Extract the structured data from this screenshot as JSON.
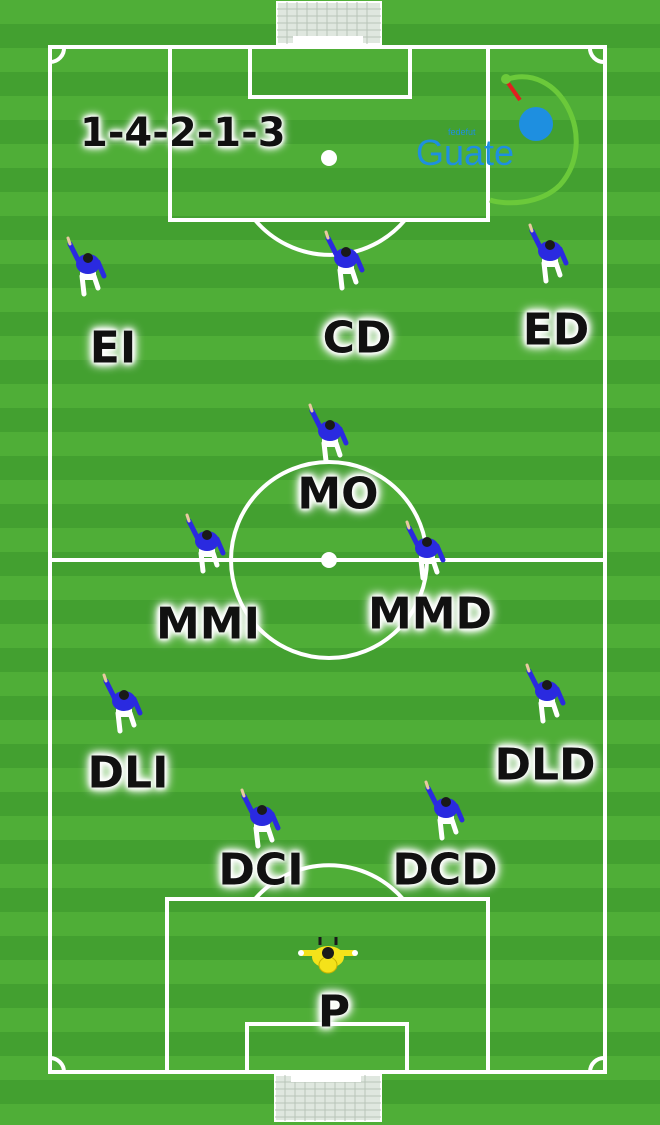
{
  "formation": "1-4-2-1-3",
  "logo": {
    "top_text": "fedefut",
    "main_text": "Guate"
  },
  "colors": {
    "grass_light": "#4fae37",
    "grass_dark": "#3f9a2c",
    "lines": "#ffffff",
    "outfield_kit": "#2a2ae0",
    "keeper_kit": "#f4e21a",
    "logo_blue": "#1e8fe0",
    "logo_green": "#6bc93a"
  },
  "players": [
    {
      "id": "ei",
      "label": "EI",
      "role": "outfield"
    },
    {
      "id": "cd",
      "label": "CD",
      "role": "outfield"
    },
    {
      "id": "ed",
      "label": "ED",
      "role": "outfield"
    },
    {
      "id": "mo",
      "label": "MO",
      "role": "outfield"
    },
    {
      "id": "mmi",
      "label": "MMI",
      "role": "outfield"
    },
    {
      "id": "mmd",
      "label": "MMD",
      "role": "outfield"
    },
    {
      "id": "dli",
      "label": "DLI",
      "role": "outfield"
    },
    {
      "id": "dld",
      "label": "DLD",
      "role": "outfield"
    },
    {
      "id": "dci",
      "label": "DCI",
      "role": "outfield"
    },
    {
      "id": "dcd",
      "label": "DCD",
      "role": "outfield"
    },
    {
      "id": "p",
      "label": "P",
      "role": "keeper"
    }
  ]
}
